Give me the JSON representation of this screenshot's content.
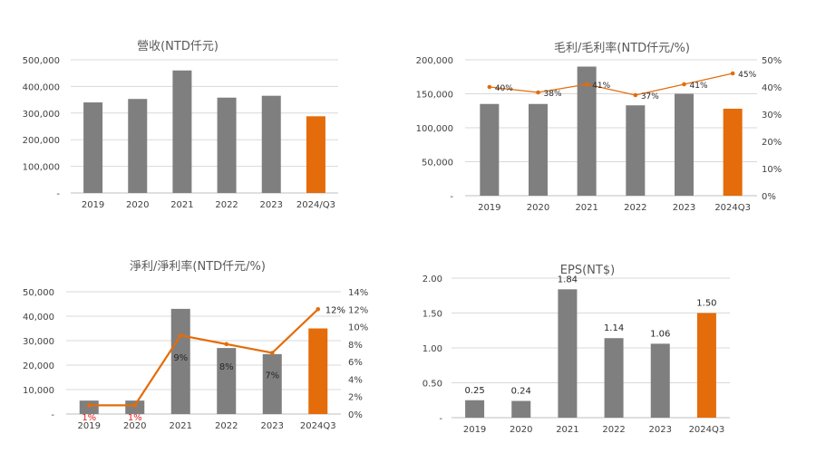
{
  "colors": {
    "gray": "#7f7f7f",
    "orange": "#e46c0a",
    "red": "#e02020",
    "axis": "#c8c8c8",
    "text": "#404040",
    "title": "#595959"
  },
  "chart_data": [
    {
      "type": "bar",
      "title": "營收(NTD仟元)",
      "categories": [
        "2019",
        "2020",
        "2021",
        "2022",
        "2023",
        "2024/Q3"
      ],
      "values": [
        340000,
        353000,
        460000,
        358000,
        365000,
        288000
      ],
      "highlight_index": 5,
      "ylim": [
        0,
        500000
      ],
      "yticks": [
        "-",
        "100,000",
        "200,000",
        "300,000",
        "400,000",
        "500,000"
      ],
      "grid": true
    },
    {
      "type": "bar",
      "title": "毛利/毛利率(NTD仟元/%)",
      "categories": [
        "2019",
        "2020",
        "2021",
        "2022",
        "2023",
        "2024Q3"
      ],
      "values": [
        135000,
        135000,
        190000,
        133000,
        150000,
        128000
      ],
      "highlight_index": 5,
      "ylim": [
        0,
        200000
      ],
      "yticks": [
        "-",
        "50,000",
        "100,000",
        "150,000",
        "200,000"
      ],
      "y2lim": [
        0,
        50
      ],
      "y2ticks": [
        "0%",
        "10%",
        "20%",
        "30%",
        "40%",
        "50%"
      ],
      "rate": [
        40,
        38,
        41,
        37,
        41,
        45
      ],
      "rate_labels": [
        "40%",
        "38%",
        "41%",
        "37%",
        "41%",
        "45%"
      ],
      "grid": true
    },
    {
      "type": "bar",
      "title": "淨利/淨利率(NTD仟元/%)",
      "categories": [
        "2019",
        "2020",
        "2021",
        "2022",
        "2023",
        "2024Q3"
      ],
      "values": [
        5500,
        5500,
        43000,
        27000,
        24500,
        35000
      ],
      "highlight_index": 5,
      "ylim": [
        0,
        50000
      ],
      "yticks": [
        "-",
        "10,000",
        "20,000",
        "30,000",
        "40,000",
        "50,000"
      ],
      "y2lim": [
        0,
        14
      ],
      "y2ticks": [
        "0%",
        "2%",
        "4%",
        "6%",
        "8%",
        "10%",
        "12%",
        "14%"
      ],
      "rate": [
        1,
        1,
        9,
        8,
        7,
        12
      ],
      "rate_labels": [
        "1%",
        "1%",
        "9%",
        "8%",
        "7%",
        "12%"
      ],
      "grid": true
    },
    {
      "type": "bar",
      "title": "EPS(NT$)",
      "categories": [
        "2019",
        "2020",
        "2021",
        "2022",
        "2023",
        "2024Q3"
      ],
      "values": [
        0.25,
        0.24,
        1.84,
        1.14,
        1.06,
        1.5
      ],
      "value_labels": [
        "0.25",
        "0.24",
        "1.84",
        "1.14",
        "1.06",
        "1.50"
      ],
      "highlight_index": 5,
      "ylim": [
        0,
        2
      ],
      "yticks": [
        "-",
        "0.50",
        "1.00",
        "1.50",
        "2.00"
      ],
      "grid": true
    }
  ]
}
